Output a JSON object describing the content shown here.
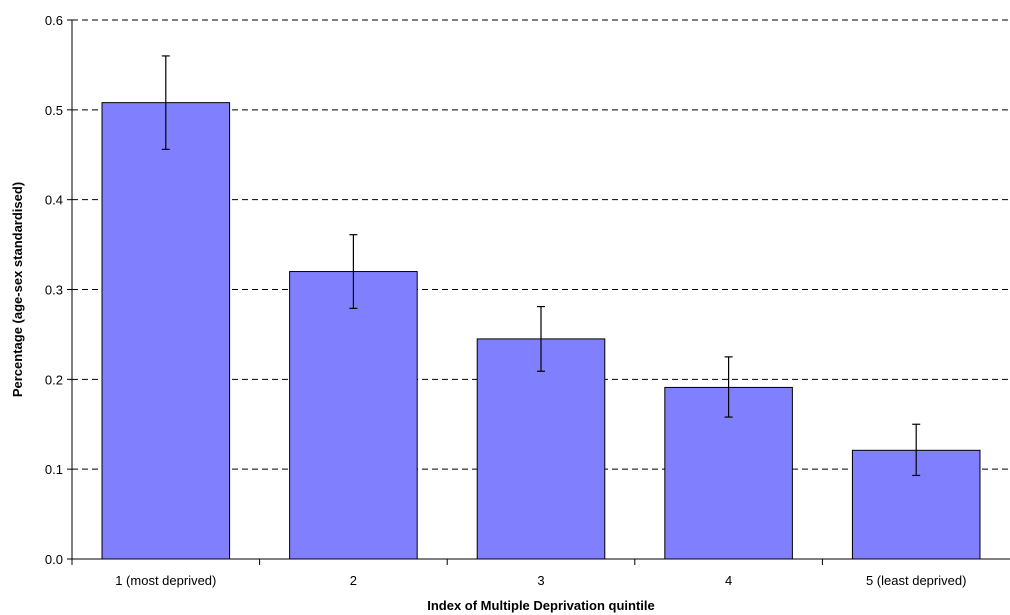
{
  "chart_data": {
    "type": "bar",
    "title": "",
    "xlabel": "Index of Multiple Deprivation quintile",
    "ylabel": "Percentage (age-sex standardised)",
    "categories": [
      "1 (most deprived)",
      "2",
      "3",
      "4",
      "5 (least deprived)"
    ],
    "values": [
      0.508,
      0.32,
      0.245,
      0.191,
      0.121
    ],
    "error_low": [
      0.456,
      0.279,
      0.209,
      0.158,
      0.093
    ],
    "error_high": [
      0.56,
      0.361,
      0.281,
      0.225,
      0.15
    ],
    "ylim": [
      0.0,
      0.6
    ],
    "yticks": [
      "0.0",
      "0.1",
      "0.2",
      "0.3",
      "0.4",
      "0.5",
      "0.6"
    ],
    "grid": true,
    "legend": "none",
    "bar_color": "#8080ff"
  }
}
